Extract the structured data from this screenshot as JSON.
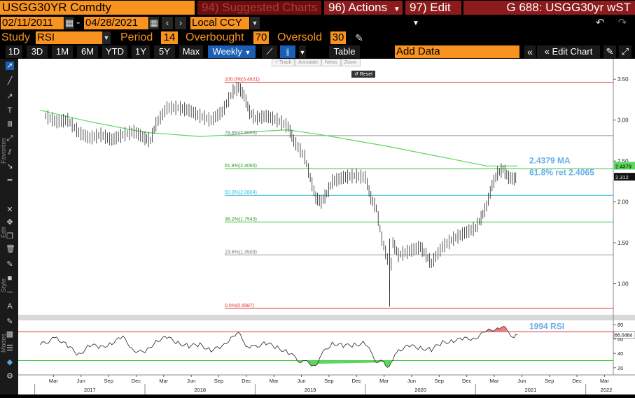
{
  "header": {
    "ticker": "USGG30YR Comdty",
    "suggested": "94) Suggested Charts",
    "actions": "96) Actions",
    "edit": "97) Edit",
    "title": "G 688: USGG30yr wST"
  },
  "controls": {
    "start_date": "02/11/2011",
    "end_date": "04/28/2021",
    "date_sep": "-",
    "currency": "Local CCY",
    "study_label": "Study",
    "study_value": "RSI",
    "period_label": "Period",
    "period_value": "14",
    "overbought_label": "Overbought",
    "overbought_value": "70",
    "oversold_label": "Oversold",
    "oversold_value": "30"
  },
  "toolbar": {
    "ranges": [
      "1D",
      "3D",
      "1M",
      "6M",
      "YTD",
      "1Y",
      "5Y",
      "Max"
    ],
    "frequency": "Weekly",
    "table": "Table",
    "add_data_placeholder": "Add Data",
    "edit_chart": "Edit Chart"
  },
  "sidebar": {
    "favorites": "Favorites",
    "edit": "Edit",
    "style": "Style",
    "modes": "Modes"
  },
  "mini_toolbar": [
    "+ Track",
    "Annotate",
    "News",
    "Zoom"
  ],
  "reset": "Reset",
  "chart_data": {
    "type": "line",
    "main": {
      "y_ticks": [
        "3.50",
        "3.00",
        "2.50",
        "2.00",
        "1.50",
        "1.00"
      ],
      "y_tick_values": [
        3.5,
        3.0,
        2.5,
        2.0,
        1.5,
        1.0
      ],
      "ylim": [
        0.62,
        3.75
      ],
      "last_price_badge": "2.312",
      "ma_badge": "2.4379",
      "ma_label": "2.4379 MA",
      "ret_label": "61.8% ret 2.4065",
      "fib_levels": [
        {
          "label": "100.0%(3.4621)",
          "value": 3.4621,
          "color": "#e03030"
        },
        {
          "label": "78.6%(2.8099)",
          "value": 2.8099,
          "color": "#909090"
        },
        {
          "label": "61.8%(2.4065)",
          "value": 2.4065,
          "color": "#39c439"
        },
        {
          "label": "50.0%(2.0804)",
          "value": 2.0804,
          "color": "#30b8d8"
        },
        {
          "label": "38.2%(1.7543)",
          "value": 1.7543,
          "color": "#39c439"
        },
        {
          "label": "23.6%(1.3509)",
          "value": 1.3509,
          "color": "#909090"
        },
        {
          "label": "0.0%(0.6987)",
          "value": 0.6987,
          "color": "#e03030"
        }
      ],
      "price_path": [
        [
          2017.1,
          3.05
        ],
        [
          2017.2,
          2.98
        ],
        [
          2017.3,
          3.0
        ],
        [
          2017.4,
          2.85
        ],
        [
          2017.5,
          2.78
        ],
        [
          2017.6,
          2.82
        ],
        [
          2017.7,
          2.76
        ],
        [
          2017.8,
          2.82
        ],
        [
          2017.9,
          2.86
        ],
        [
          2018.0,
          2.78
        ],
        [
          2018.05,
          2.75
        ],
        [
          2018.1,
          2.95
        ],
        [
          2018.2,
          3.15
        ],
        [
          2018.3,
          3.15
        ],
        [
          2018.4,
          3.12
        ],
        [
          2018.5,
          3.05
        ],
        [
          2018.6,
          3.0
        ],
        [
          2018.7,
          3.1
        ],
        [
          2018.8,
          3.35
        ],
        [
          2018.85,
          3.4
        ],
        [
          2018.9,
          3.3
        ],
        [
          2018.95,
          3.1
        ],
        [
          2019.0,
          3.02
        ],
        [
          2019.1,
          3.05
        ],
        [
          2019.2,
          3.0
        ],
        [
          2019.3,
          2.92
        ],
        [
          2019.35,
          2.75
        ],
        [
          2019.45,
          2.55
        ],
        [
          2019.5,
          2.3
        ],
        [
          2019.55,
          2.05
        ],
        [
          2019.6,
          2.0
        ],
        [
          2019.65,
          2.1
        ],
        [
          2019.7,
          2.25
        ],
        [
          2019.8,
          2.3
        ],
        [
          2019.9,
          2.32
        ],
        [
          2020.0,
          2.3
        ],
        [
          2020.05,
          2.05
        ],
        [
          2020.1,
          1.92
        ],
        [
          2020.15,
          1.55
        ],
        [
          2020.2,
          1.3
        ],
        [
          2020.22,
          0.98
        ],
        [
          2020.25,
          1.5
        ],
        [
          2020.3,
          1.35
        ],
        [
          2020.4,
          1.4
        ],
        [
          2020.5,
          1.45
        ],
        [
          2020.55,
          1.35
        ],
        [
          2020.6,
          1.25
        ],
        [
          2020.7,
          1.45
        ],
        [
          2020.8,
          1.55
        ],
        [
          2020.9,
          1.62
        ],
        [
          2021.0,
          1.68
        ],
        [
          2021.05,
          1.8
        ],
        [
          2021.1,
          1.95
        ],
        [
          2021.15,
          2.2
        ],
        [
          2021.2,
          2.35
        ],
        [
          2021.25,
          2.4
        ],
        [
          2021.3,
          2.3
        ],
        [
          2021.35,
          2.28
        ],
        [
          2021.38,
          2.31
        ]
      ],
      "ma_path": [
        [
          2017.05,
          3.12
        ],
        [
          2017.5,
          2.98
        ],
        [
          2018.0,
          2.85
        ],
        [
          2018.5,
          2.8
        ],
        [
          2018.8,
          2.82
        ],
        [
          2019.0,
          2.86
        ],
        [
          2019.3,
          2.88
        ],
        [
          2019.6,
          2.82
        ],
        [
          2019.9,
          2.75
        ],
        [
          2020.2,
          2.68
        ],
        [
          2020.5,
          2.6
        ],
        [
          2020.8,
          2.52
        ],
        [
          2021.1,
          2.44
        ],
        [
          2021.38,
          2.4379
        ]
      ]
    },
    "rsi": {
      "y_ticks": [
        "80",
        "60",
        "40",
        "20"
      ],
      "y_tick_values": [
        80,
        60,
        40,
        20
      ],
      "ylim": [
        12,
        86
      ],
      "overbought": 70,
      "oversold": 30,
      "last_badge": "66.0464",
      "label": "1994 RSI",
      "path": [
        [
          2017.05,
          52
        ],
        [
          2017.2,
          62
        ],
        [
          2017.3,
          50
        ],
        [
          2017.4,
          38
        ],
        [
          2017.5,
          52
        ],
        [
          2017.6,
          48
        ],
        [
          2017.7,
          55
        ],
        [
          2017.8,
          62
        ],
        [
          2017.9,
          45
        ],
        [
          2018.0,
          40
        ],
        [
          2018.1,
          58
        ],
        [
          2018.2,
          62
        ],
        [
          2018.3,
          55
        ],
        [
          2018.4,
          50
        ],
        [
          2018.5,
          52
        ],
        [
          2018.6,
          45
        ],
        [
          2018.7,
          48
        ],
        [
          2018.8,
          66
        ],
        [
          2018.85,
          68
        ],
        [
          2018.9,
          55
        ],
        [
          2018.95,
          48
        ],
        [
          2019.0,
          50
        ],
        [
          2019.1,
          54
        ],
        [
          2019.2,
          48
        ],
        [
          2019.3,
          42
        ],
        [
          2019.35,
          35
        ],
        [
          2019.4,
          30
        ],
        [
          2019.45,
          28
        ],
        [
          2019.55,
          24
        ],
        [
          2019.6,
          38
        ],
        [
          2019.7,
          55
        ],
        [
          2019.8,
          50
        ],
        [
          2019.9,
          52
        ],
        [
          2020.0,
          55
        ],
        [
          2020.05,
          40
        ],
        [
          2020.1,
          30
        ],
        [
          2020.15,
          28
        ],
        [
          2020.2,
          22
        ],
        [
          2020.25,
          30
        ],
        [
          2020.3,
          45
        ],
        [
          2020.4,
          50
        ],
        [
          2020.5,
          48
        ],
        [
          2020.6,
          45
        ],
        [
          2020.7,
          55
        ],
        [
          2020.8,
          58
        ],
        [
          2020.9,
          60
        ],
        [
          2021.0,
          62
        ],
        [
          2021.1,
          70
        ],
        [
          2021.2,
          76
        ],
        [
          2021.25,
          78
        ],
        [
          2021.3,
          68
        ],
        [
          2021.35,
          64
        ],
        [
          2021.38,
          66
        ]
      ]
    },
    "x_ticks": [
      "Mar",
      "Jun",
      "Sep",
      "Dec",
      "Mar",
      "Jun",
      "Sep",
      "Dec",
      "Mar",
      "Jun",
      "Sep",
      "Dec",
      "Mar",
      "Jun",
      "Sep",
      "Dec",
      "Mar",
      "Jun",
      "Sep",
      "Dec",
      "Mar"
    ],
    "x_tick_values": [
      2017.17,
      2017.42,
      2017.67,
      2017.92,
      2018.17,
      2018.42,
      2018.67,
      2018.92,
      2019.17,
      2019.42,
      2019.67,
      2019.92,
      2020.17,
      2020.42,
      2020.67,
      2020.92,
      2021.17,
      2021.42,
      2021.67,
      2021.92,
      2022.17
    ],
    "years": [
      "2017",
      "2018",
      "2019",
      "2020",
      "2021",
      "2022"
    ],
    "year_values": [
      2017.0,
      2018.0,
      2019.0,
      2020.0,
      2021.0,
      2022.0
    ],
    "xlim": [
      2016.85,
      2022.25
    ]
  }
}
